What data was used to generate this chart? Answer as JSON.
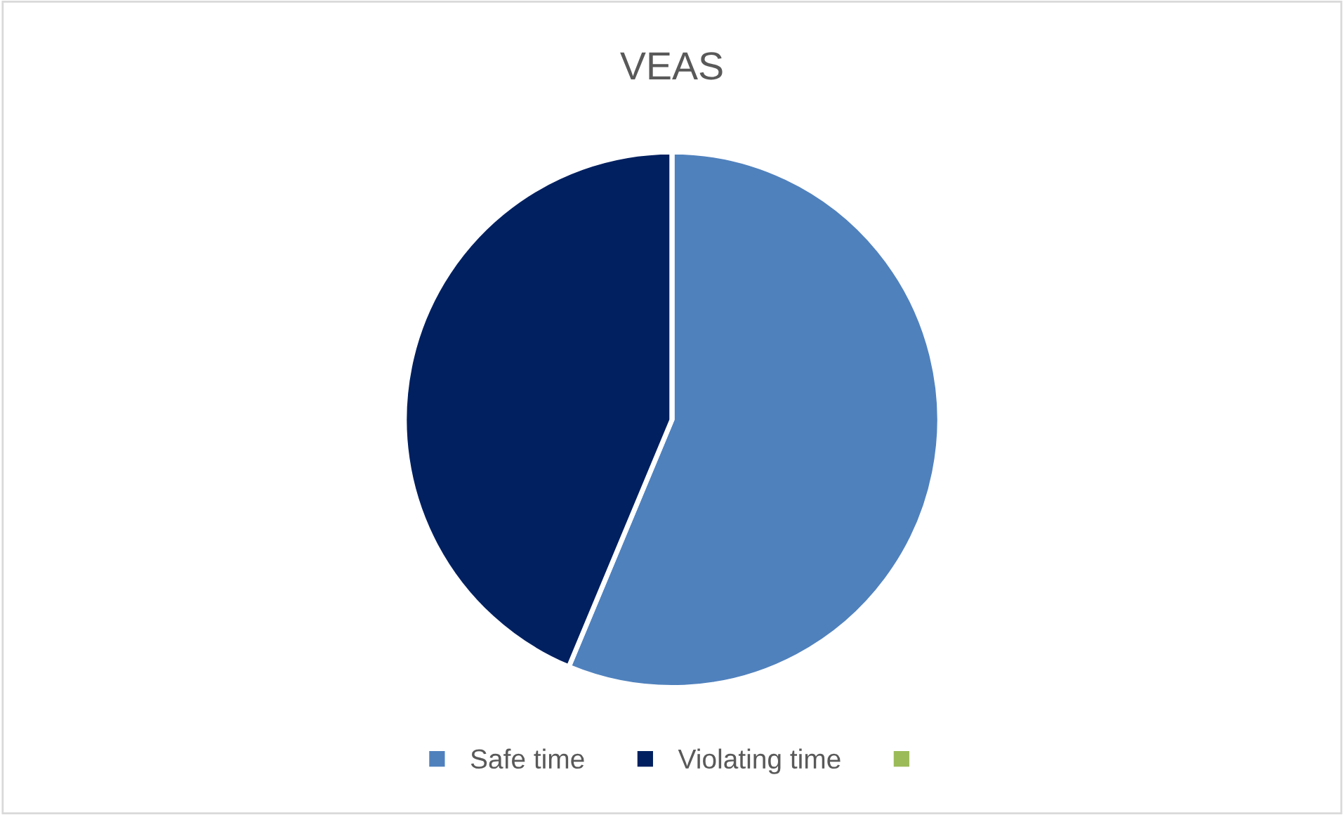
{
  "chart_data": {
    "type": "pie",
    "title": "VEAS",
    "categories": [
      "Safe time",
      "Violating time",
      null
    ],
    "values": [
      56.3,
      43.7,
      0
    ],
    "colors": [
      "#4f81bd",
      "#002060",
      "#9bbb59"
    ],
    "legend": "bottom"
  }
}
